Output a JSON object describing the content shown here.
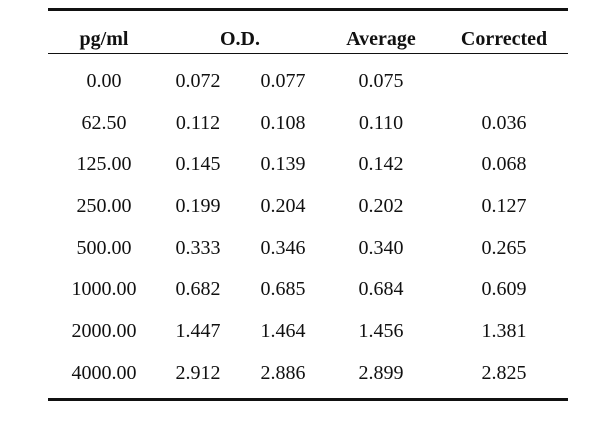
{
  "table": {
    "headers": {
      "concentration": "pg/ml",
      "od": "O.D.",
      "average": "Average",
      "corrected": "Corrected"
    },
    "rows": [
      {
        "conc": "0.00",
        "od1": "0.072",
        "od2": "0.077",
        "avg": "0.075",
        "corr": ""
      },
      {
        "conc": "62.50",
        "od1": "0.112",
        "od2": "0.108",
        "avg": "0.110",
        "corr": "0.036"
      },
      {
        "conc": "125.00",
        "od1": "0.145",
        "od2": "0.139",
        "avg": "0.142",
        "corr": "0.068"
      },
      {
        "conc": "250.00",
        "od1": "0.199",
        "od2": "0.204",
        "avg": "0.202",
        "corr": "0.127"
      },
      {
        "conc": "500.00",
        "od1": "0.333",
        "od2": "0.346",
        "avg": "0.340",
        "corr": "0.265"
      },
      {
        "conc": "1000.00",
        "od1": "0.682",
        "od2": "0.685",
        "avg": "0.684",
        "corr": "0.609"
      },
      {
        "conc": "2000.00",
        "od1": "1.447",
        "od2": "1.464",
        "avg": "1.456",
        "corr": "1.381"
      },
      {
        "conc": "4000.00",
        "od1": "2.912",
        "od2": "2.886",
        "avg": "2.899",
        "corr": "2.825"
      }
    ]
  }
}
